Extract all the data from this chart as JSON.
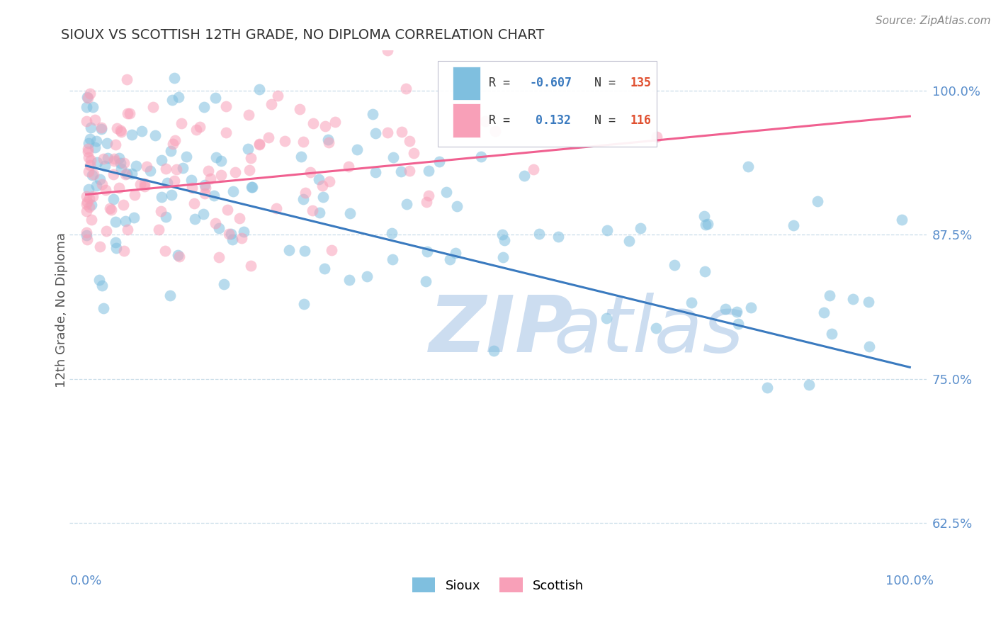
{
  "title": "SIOUX VS SCOTTISH 12TH GRADE, NO DIPLOMA CORRELATION CHART",
  "source": "Source: ZipAtlas.com",
  "ylabel": "12th Grade, No Diploma",
  "xlim": [
    -0.02,
    1.02
  ],
  "ylim": [
    0.585,
    1.035
  ],
  "yticks": [
    0.625,
    0.75,
    0.875,
    1.0
  ],
  "ytick_labels": [
    "62.5%",
    "75.0%",
    "87.5%",
    "100.0%"
  ],
  "xticks": [
    0.0,
    0.1,
    0.2,
    0.3,
    0.4,
    0.5,
    0.6,
    0.7,
    0.8,
    0.9,
    1.0
  ],
  "xtick_labels": [
    "0.0%",
    "",
    "",
    "",
    "",
    "",
    "",
    "",
    "",
    "",
    "100.0%"
  ],
  "sioux_R": -0.607,
  "sioux_N": 135,
  "scottish_R": 0.132,
  "scottish_N": 116,
  "blue_color": "#7fbfdf",
  "pink_color": "#f8a0b8",
  "blue_line_color": "#3a7abf",
  "pink_line_color": "#f06090",
  "sioux_line_y0": 0.935,
  "sioux_line_y1": 0.76,
  "scottish_line_y0": 0.91,
  "scottish_line_y1": 0.978,
  "watermark_zip": "ZIP",
  "watermark_atlas": "atlas",
  "watermark_color": "#ccddf0",
  "legend_R_color": "#3a7abf",
  "legend_N_color": "#e05030",
  "background_color": "#ffffff",
  "grid_color": "#c8dce8",
  "sioux_seed": 42,
  "scottish_seed": 99
}
